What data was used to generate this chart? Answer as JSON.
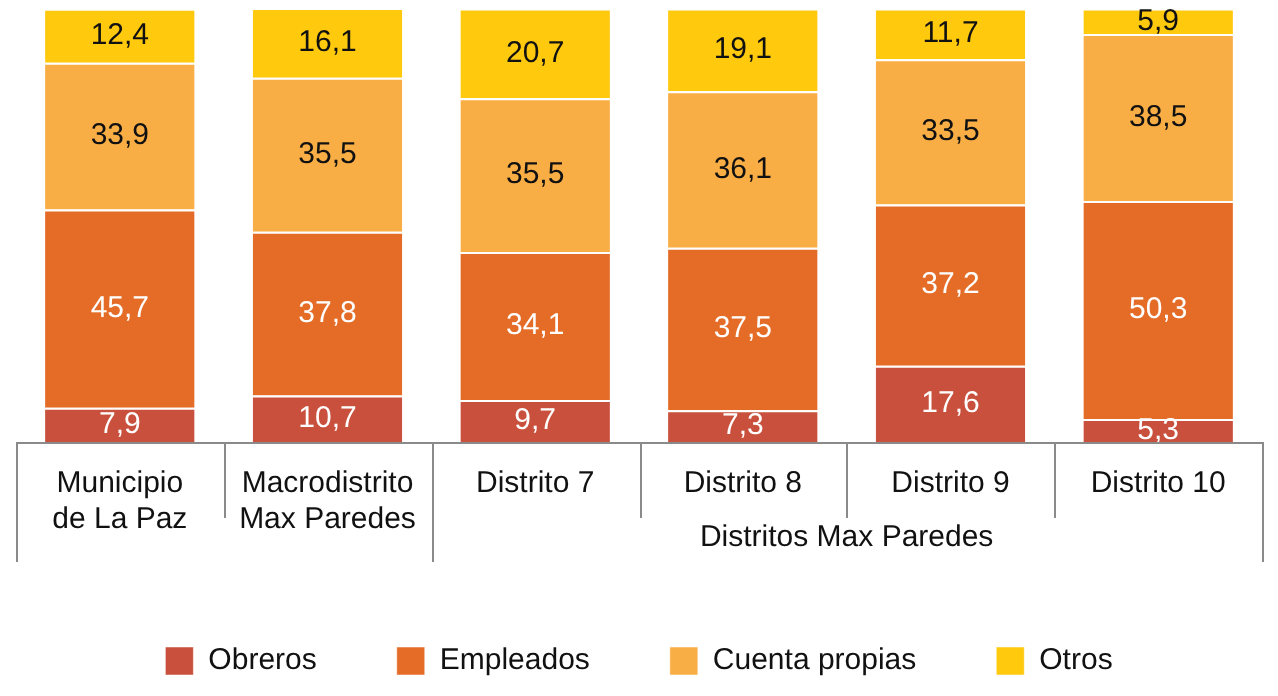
{
  "chart_data": {
    "type": "bar",
    "stacked": true,
    "tick_labels": "x",
    "legend": "bottom",
    "categories": [
      "Municipio de La Paz",
      "Macrodistrito Max Paredes",
      "Distrito 7",
      "Distrito 8",
      "Distrito 9",
      "Distrito 10"
    ],
    "annotations": [
      "Distritos Max Paredes"
    ],
    "series": [
      {
        "name": "Obreros",
        "color": "#c9503c",
        "values": [
          7.9,
          10.7,
          9.7,
          7.3,
          17.6,
          5.3
        ],
        "value_labels": [
          "7,9",
          "10,7",
          "9,7",
          "7,3",
          "17,6",
          "5,3"
        ]
      },
      {
        "name": "Empleados",
        "color": "#e46c27",
        "values": [
          45.7,
          37.8,
          34.1,
          37.5,
          37.2,
          50.3
        ],
        "value_labels": [
          "45,7",
          "37,8",
          "34,1",
          "37,5",
          "37,2",
          "50,3"
        ]
      },
      {
        "name": "Cuenta propias",
        "color": "#f9ae45",
        "values": [
          33.9,
          35.5,
          35.5,
          36.1,
          33.5,
          38.5
        ],
        "value_labels": [
          "33,9",
          "35,5",
          "35,5",
          "36,1",
          "33,5",
          "38,5"
        ]
      },
      {
        "name": "Otros",
        "color": "#ffc90e",
        "values": [
          12.4,
          16.1,
          20.7,
          19.1,
          11.7,
          5.9
        ],
        "value_labels": [
          "12,4",
          "16,1",
          "20,7",
          "19,1",
          "11,7",
          "5,9"
        ]
      }
    ]
  }
}
